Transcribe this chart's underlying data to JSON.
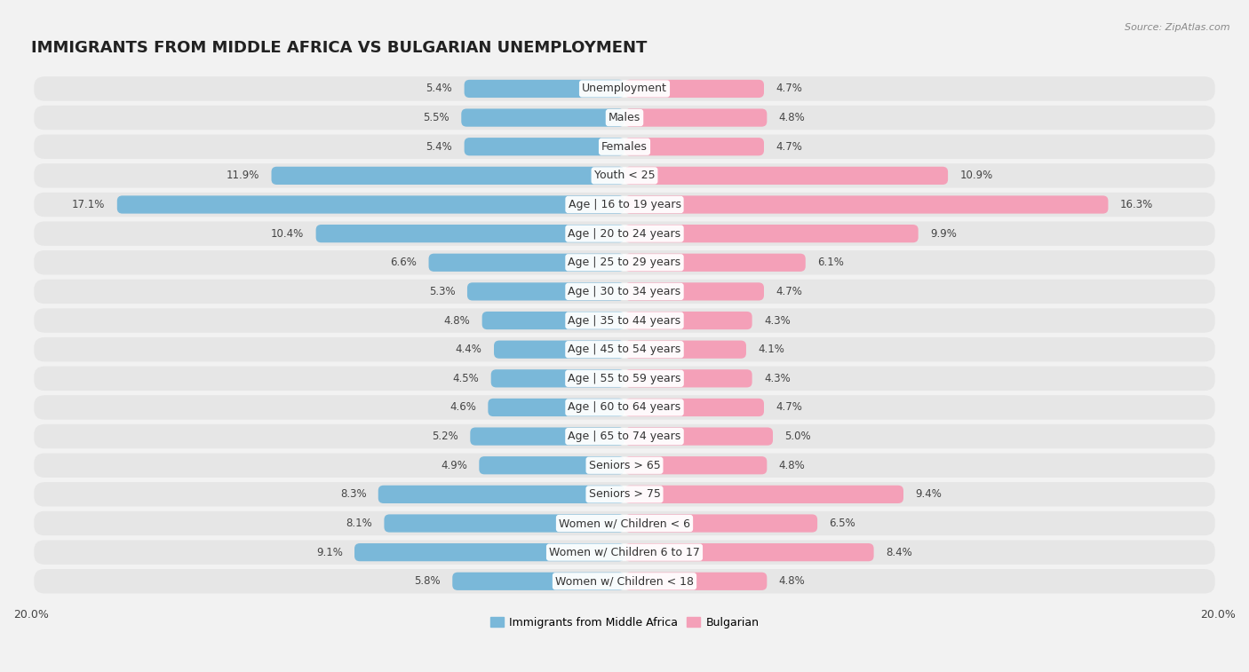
{
  "title": "IMMIGRANTS FROM MIDDLE AFRICA VS BULGARIAN UNEMPLOYMENT",
  "source": "Source: ZipAtlas.com",
  "categories": [
    "Unemployment",
    "Males",
    "Females",
    "Youth < 25",
    "Age | 16 to 19 years",
    "Age | 20 to 24 years",
    "Age | 25 to 29 years",
    "Age | 30 to 34 years",
    "Age | 35 to 44 years",
    "Age | 45 to 54 years",
    "Age | 55 to 59 years",
    "Age | 60 to 64 years",
    "Age | 65 to 74 years",
    "Seniors > 65",
    "Seniors > 75",
    "Women w/ Children < 6",
    "Women w/ Children 6 to 17",
    "Women w/ Children < 18"
  ],
  "left_values": [
    5.4,
    5.5,
    5.4,
    11.9,
    17.1,
    10.4,
    6.6,
    5.3,
    4.8,
    4.4,
    4.5,
    4.6,
    5.2,
    4.9,
    8.3,
    8.1,
    9.1,
    5.8
  ],
  "right_values": [
    4.7,
    4.8,
    4.7,
    10.9,
    16.3,
    9.9,
    6.1,
    4.7,
    4.3,
    4.1,
    4.3,
    4.7,
    5.0,
    4.8,
    9.4,
    6.5,
    8.4,
    4.8
  ],
  "left_color": "#7ab8d9",
  "right_color": "#f4a0b8",
  "left_label": "Immigrants from Middle Africa",
  "right_label": "Bulgarian",
  "xlim": 20.0,
  "row_bg_color": "#e8e8e8",
  "row_alt_color": "#f0f0f0",
  "page_bg_color": "#f2f2f2",
  "bar_bg_color": "#ffffff",
  "title_fontsize": 13,
  "label_fontsize": 9.0,
  "value_fontsize": 8.5
}
